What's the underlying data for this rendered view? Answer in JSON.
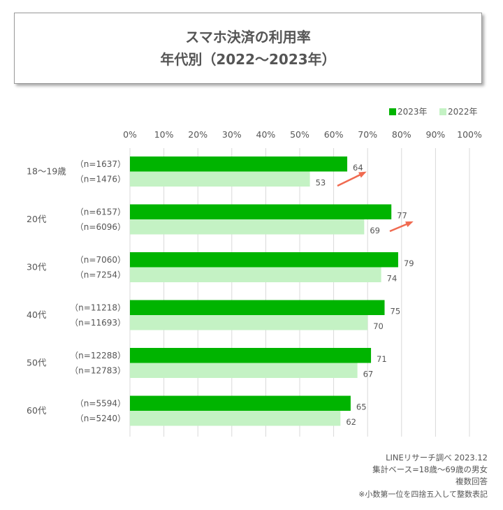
{
  "title_line1": "スマホ決済の利用率",
  "title_line2": "年代別（2022〜2023年）",
  "colors": {
    "2023": "#00b400",
    "2022": "#c4f2c4",
    "arrow": "#f06a50",
    "grid": "#d9d9d9"
  },
  "chart_data": {
    "type": "bar",
    "orientation": "horizontal",
    "title": "スマホ決済の利用率 年代別（2022〜2023年）",
    "categories": [
      "18〜19歳",
      "20代",
      "30代",
      "40代",
      "50代",
      "60代"
    ],
    "series": [
      {
        "name": "2023年",
        "values": [
          64,
          77,
          79,
          75,
          71,
          65
        ],
        "n": [
          "（n=1637）",
          "（n=6157）",
          "（n=7060）",
          "（n=11218）",
          "（n=12288）",
          "（n=5594）"
        ]
      },
      {
        "name": "2022年",
        "values": [
          53,
          69,
          74,
          70,
          67,
          62
        ],
        "n": [
          "（n=1476）",
          "（n=6096）",
          "（n=7254）",
          "（n=11693）",
          "（n=12783）",
          "（n=5240）"
        ]
      }
    ],
    "xlim": [
      0,
      100
    ],
    "xticks": [
      "0%",
      "10%",
      "20%",
      "30%",
      "40%",
      "50%",
      "60%",
      "70%",
      "80%",
      "90%",
      "100%"
    ],
    "grid": true,
    "legend": "top-right",
    "annotations": [
      "increase arrow at 18〜19歳",
      "increase arrow at 20代"
    ]
  },
  "notes": [
    "LINEリサーチ調べ 2023.12",
    "集計ベース=18歳〜69歳の男女",
    "複数回答",
    "※小数第一位を四捨五入して整数表記"
  ]
}
